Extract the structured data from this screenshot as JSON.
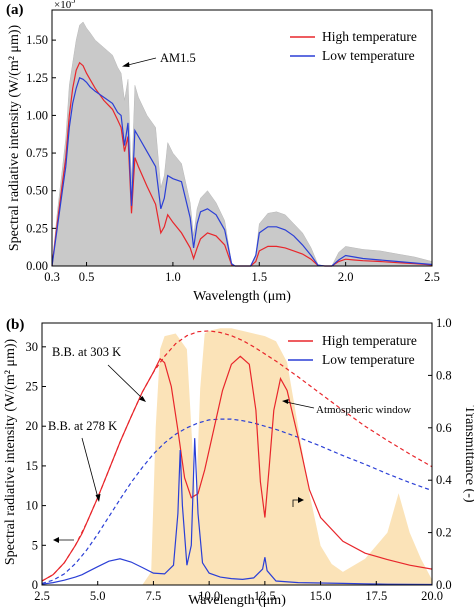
{
  "panels": [
    {
      "id": "a",
      "label": "(a)",
      "exponent_label": "×10",
      "exponent_power": "5",
      "xlabel": "Wavelength (μm)",
      "ylabel": "Spectral radiative intensity (W/(m² μm))",
      "legend": [
        "High temperature",
        "Low temperature"
      ],
      "annotations": [
        "AM1.5"
      ]
    },
    {
      "id": "b",
      "label": "(b)",
      "xlabel": "Wavelength (μm)",
      "ylabel": "Spectral radiative intensity (W/(m² μm))",
      "y2label": "Transmittance (-)",
      "legend": [
        "High temperature",
        "Low temperature"
      ],
      "annotations": [
        "B.B. at 303 K",
        "B.B. at 278 K",
        "Atmospheric window"
      ]
    }
  ],
  "colors": {
    "high": "#e8262b",
    "low": "#2b3fd6",
    "am15": "#c9c9c9",
    "atm": "#fbe3b8"
  },
  "chart_data": [
    {
      "type": "line",
      "title": "",
      "xlabel": "Wavelength (μm)",
      "ylabel": "Spectral radiative intensity (W/(m² μm))",
      "xlim": [
        0.3,
        2.5
      ],
      "ylim": [
        0,
        170000
      ],
      "x_ticks": [
        0.3,
        0.5,
        1.0,
        1.5,
        2.0,
        2.5
      ],
      "x_tick_labels": [
        "0.3",
        "0.5",
        "1.0",
        "1.5",
        "2.0",
        "2.5"
      ],
      "y_ticks": [
        0,
        25000,
        50000,
        75000,
        100000,
        125000,
        150000
      ],
      "y_tick_labels": [
        "0.00",
        "0.25",
        "0.50",
        "0.75",
        "1.00",
        "1.25",
        "1.50"
      ],
      "series": [
        {
          "name": "AM1.5",
          "style": "filled",
          "x": [
            0.3,
            0.33,
            0.36,
            0.38,
            0.4,
            0.42,
            0.44,
            0.46,
            0.48,
            0.5,
            0.52,
            0.55,
            0.6,
            0.65,
            0.68,
            0.7,
            0.72,
            0.74,
            0.76,
            0.78,
            0.8,
            0.85,
            0.9,
            0.93,
            0.95,
            0.97,
            1.0,
            1.05,
            1.1,
            1.12,
            1.14,
            1.16,
            1.2,
            1.25,
            1.3,
            1.34,
            1.36,
            1.4,
            1.45,
            1.48,
            1.5,
            1.55,
            1.6,
            1.65,
            1.7,
            1.75,
            1.8,
            1.84,
            1.88,
            1.92,
            1.96,
            2.0,
            2.05,
            2.1,
            2.2,
            2.3,
            2.4,
            2.5
          ],
          "values": [
            0,
            35000,
            65000,
            85000,
            120000,
            135000,
            150000,
            160000,
            162000,
            158000,
            155000,
            150000,
            145000,
            140000,
            132000,
            128000,
            110000,
            124000,
            55000,
            120000,
            112000,
            100000,
            92000,
            52000,
            60000,
            82000,
            75000,
            68000,
            42000,
            20000,
            38000,
            45000,
            50000,
            42000,
            30000,
            2000,
            0,
            0,
            0,
            8000,
            28000,
            35000,
            36000,
            34000,
            28000,
            22000,
            12000,
            1000,
            0,
            0,
            9000,
            13000,
            12000,
            11000,
            10000,
            8000,
            6000,
            3000
          ]
        },
        {
          "name": "High temperature",
          "x": [
            0.3,
            0.33,
            0.36,
            0.38,
            0.4,
            0.42,
            0.44,
            0.46,
            0.48,
            0.5,
            0.52,
            0.55,
            0.6,
            0.65,
            0.68,
            0.7,
            0.72,
            0.74,
            0.76,
            0.78,
            0.8,
            0.85,
            0.9,
            0.93,
            0.95,
            0.97,
            1.0,
            1.05,
            1.1,
            1.12,
            1.14,
            1.16,
            1.2,
            1.25,
            1.3,
            1.34,
            1.36,
            1.4,
            1.45,
            1.48,
            1.5,
            1.55,
            1.6,
            1.65,
            1.7,
            1.75,
            1.8,
            1.84,
            1.88,
            1.92,
            1.96,
            2.0,
            2.05,
            2.1,
            2.2,
            2.3,
            2.4,
            2.5
          ],
          "values": [
            0,
            28000,
            55000,
            72000,
            100000,
            118000,
            130000,
            135000,
            133000,
            128000,
            124000,
            118000,
            110000,
            104000,
            97000,
            92000,
            76000,
            86000,
            35000,
            72000,
            66000,
            53000,
            41000,
            22000,
            26000,
            34000,
            29000,
            22000,
            12000,
            5000,
            12000,
            18000,
            22000,
            20000,
            14000,
            800,
            0,
            0,
            0,
            3000,
            10000,
            13000,
            13000,
            12000,
            10000,
            8000,
            4500,
            300,
            0,
            0,
            3000,
            4500,
            4000,
            3500,
            3000,
            2200,
            1500,
            700
          ]
        },
        {
          "name": "Low temperature",
          "x": [
            0.3,
            0.33,
            0.36,
            0.38,
            0.4,
            0.42,
            0.44,
            0.46,
            0.48,
            0.5,
            0.52,
            0.55,
            0.6,
            0.65,
            0.68,
            0.7,
            0.72,
            0.74,
            0.76,
            0.78,
            0.8,
            0.85,
            0.9,
            0.93,
            0.95,
            0.97,
            1.0,
            1.05,
            1.1,
            1.12,
            1.14,
            1.16,
            1.2,
            1.25,
            1.3,
            1.34,
            1.36,
            1.4,
            1.45,
            1.48,
            1.5,
            1.55,
            1.6,
            1.65,
            1.7,
            1.75,
            1.8,
            1.84,
            1.88,
            1.92,
            1.96,
            2.0,
            2.05,
            2.1,
            2.2,
            2.3,
            2.4,
            2.5
          ],
          "values": [
            0,
            25000,
            50000,
            66000,
            92000,
            108000,
            118000,
            125000,
            124000,
            122000,
            119000,
            116000,
            112000,
            108000,
            102000,
            100000,
            80000,
            95000,
            40000,
            90000,
            86000,
            76000,
            66000,
            38000,
            45000,
            60000,
            58000,
            56000,
            32000,
            12000,
            28000,
            36000,
            38000,
            34000,
            24000,
            1500,
            0,
            0,
            0,
            7000,
            22000,
            26000,
            26000,
            24000,
            20000,
            14000,
            7000,
            500,
            0,
            0,
            4000,
            7000,
            6000,
            5000,
            4000,
            3000,
            2000,
            1000
          ]
        }
      ]
    },
    {
      "type": "line",
      "title": "",
      "xlabel": "Wavelength (μm)",
      "ylabel": "Spectral radiative intensity (W/(m² μm))",
      "y2label": "Transmittance (-)",
      "xlim": [
        2.5,
        20.0
      ],
      "ylim": [
        0,
        33
      ],
      "y2lim": [
        0,
        1.0
      ],
      "x_ticks": [
        2.5,
        5.0,
        7.5,
        10.0,
        12.5,
        15.0,
        17.5,
        20.0
      ],
      "x_tick_labels": [
        "2.5",
        "5.0",
        "7.5",
        "10.0",
        "12.5",
        "15.0",
        "17.5",
        "20.0"
      ],
      "y_ticks": [
        0,
        5,
        10,
        15,
        20,
        25,
        30
      ],
      "y2_ticks": [
        0,
        0.2,
        0.4,
        0.6,
        0.8,
        1.0
      ],
      "series": [
        {
          "name": "Atmospheric window",
          "axis": "right",
          "style": "filled",
          "x": [
            2.5,
            4.0,
            5.0,
            6.0,
            7.0,
            7.4,
            7.6,
            7.8,
            8.0,
            8.5,
            9.0,
            9.4,
            9.6,
            9.8,
            10.0,
            10.5,
            11.0,
            11.5,
            12.0,
            12.5,
            13.0,
            13.5,
            14.0,
            14.5,
            15.0,
            15.5,
            16.0,
            17.0,
            18.0,
            18.5,
            19.0,
            19.5,
            20.0
          ],
          "values": [
            0,
            0,
            0,
            0,
            0,
            0.05,
            0.6,
            0.9,
            0.95,
            0.96,
            0.9,
            0.3,
            0.75,
            0.96,
            0.97,
            0.98,
            0.98,
            0.97,
            0.96,
            0.95,
            0.93,
            0.85,
            0.6,
            0.35,
            0.15,
            0.08,
            0.05,
            0.1,
            0.2,
            0.35,
            0.2,
            0.1,
            0.02
          ]
        },
        {
          "name": "B.B. at 303 K",
          "style": "dashed",
          "x": [
            2.5,
            3.0,
            3.5,
            4.0,
            4.5,
            5.0,
            5.5,
            6.0,
            6.5,
            7.0,
            7.5,
            8.0,
            8.5,
            9.0,
            9.5,
            10.0,
            10.5,
            11.0,
            11.5,
            12.0,
            13.0,
            14.0,
            15.0,
            16.0,
            17.0,
            18.0,
            19.0,
            20.0
          ],
          "values": [
            0.5,
            1.3,
            2.8,
            5.0,
            7.8,
            11.0,
            14.5,
            18.0,
            21.2,
            24.3,
            26.8,
            28.8,
            30.4,
            31.4,
            31.9,
            32.0,
            31.8,
            31.4,
            30.8,
            30.0,
            28.2,
            26.2,
            24.1,
            22.0,
            20.0,
            18.2,
            16.5,
            14.9
          ]
        },
        {
          "name": "B.B. at 278 K",
          "style": "dashed",
          "x": [
            2.5,
            3.0,
            3.5,
            4.0,
            4.5,
            5.0,
            5.5,
            6.0,
            6.5,
            7.0,
            7.5,
            8.0,
            8.5,
            9.0,
            9.5,
            10.0,
            10.5,
            11.0,
            11.5,
            12.0,
            13.0,
            14.0,
            15.0,
            16.0,
            17.0,
            18.0,
            19.0,
            20.0
          ],
          "values": [
            0.2,
            0.6,
            1.4,
            2.7,
            4.4,
            6.4,
            8.6,
            10.8,
            12.9,
            14.8,
            16.5,
            17.9,
            19.0,
            19.8,
            20.4,
            20.8,
            20.9,
            20.9,
            20.7,
            20.4,
            19.6,
            18.6,
            17.5,
            16.3,
            15.2,
            14.0,
            12.9,
            11.9
          ]
        },
        {
          "name": "High temperature",
          "x": [
            2.5,
            3.0,
            3.5,
            4.0,
            4.3,
            4.5,
            5.0,
            5.5,
            6.0,
            6.5,
            7.0,
            7.5,
            7.8,
            8.0,
            8.3,
            8.6,
            8.9,
            9.2,
            9.5,
            9.8,
            10.2,
            10.6,
            11.0,
            11.4,
            11.8,
            12.1,
            12.3,
            12.5,
            12.7,
            12.9,
            13.2,
            13.5,
            14.0,
            14.5,
            15.0,
            16.0,
            17.0,
            18.0,
            19.0,
            20.0
          ],
          "values": [
            0.5,
            1.3,
            2.8,
            5.0,
            6.5,
            7.8,
            11.0,
            14.5,
            18.0,
            21.2,
            24.3,
            26.8,
            28.5,
            28.0,
            25.0,
            19.5,
            13.5,
            11.0,
            11.5,
            14.5,
            19.5,
            24.5,
            27.8,
            28.8,
            27.8,
            22.0,
            13.0,
            8.5,
            15.0,
            22.0,
            26.0,
            24.5,
            18.5,
            12.0,
            8.5,
            5.5,
            4.0,
            3.2,
            2.5,
            2.0
          ]
        },
        {
          "name": "Low temperature",
          "x": [
            2.5,
            3.0,
            3.5,
            4.0,
            4.3,
            4.5,
            5.0,
            5.5,
            6.0,
            6.5,
            7.0,
            7.5,
            8.0,
            8.4,
            8.6,
            8.7,
            8.8,
            9.0,
            9.2,
            9.35,
            9.5,
            9.7,
            10.0,
            10.5,
            11.0,
            11.5,
            12.0,
            12.4,
            12.5,
            12.6,
            13.0,
            14.0,
            15.0,
            16.0,
            17.0,
            18.0,
            19.0,
            20.0
          ],
          "values": [
            0.1,
            0.3,
            0.6,
            1.0,
            1.3,
            1.6,
            2.3,
            3.0,
            3.3,
            2.9,
            2.2,
            1.5,
            1.4,
            2.5,
            9.0,
            17.0,
            10.0,
            2.5,
            5.0,
            18.5,
            9.0,
            2.8,
            1.5,
            1.0,
            0.8,
            0.7,
            0.9,
            2.0,
            3.5,
            1.8,
            0.5,
            0.3,
            0.25,
            0.2,
            0.15,
            0.1,
            0.08,
            0.06
          ]
        }
      ]
    }
  ]
}
